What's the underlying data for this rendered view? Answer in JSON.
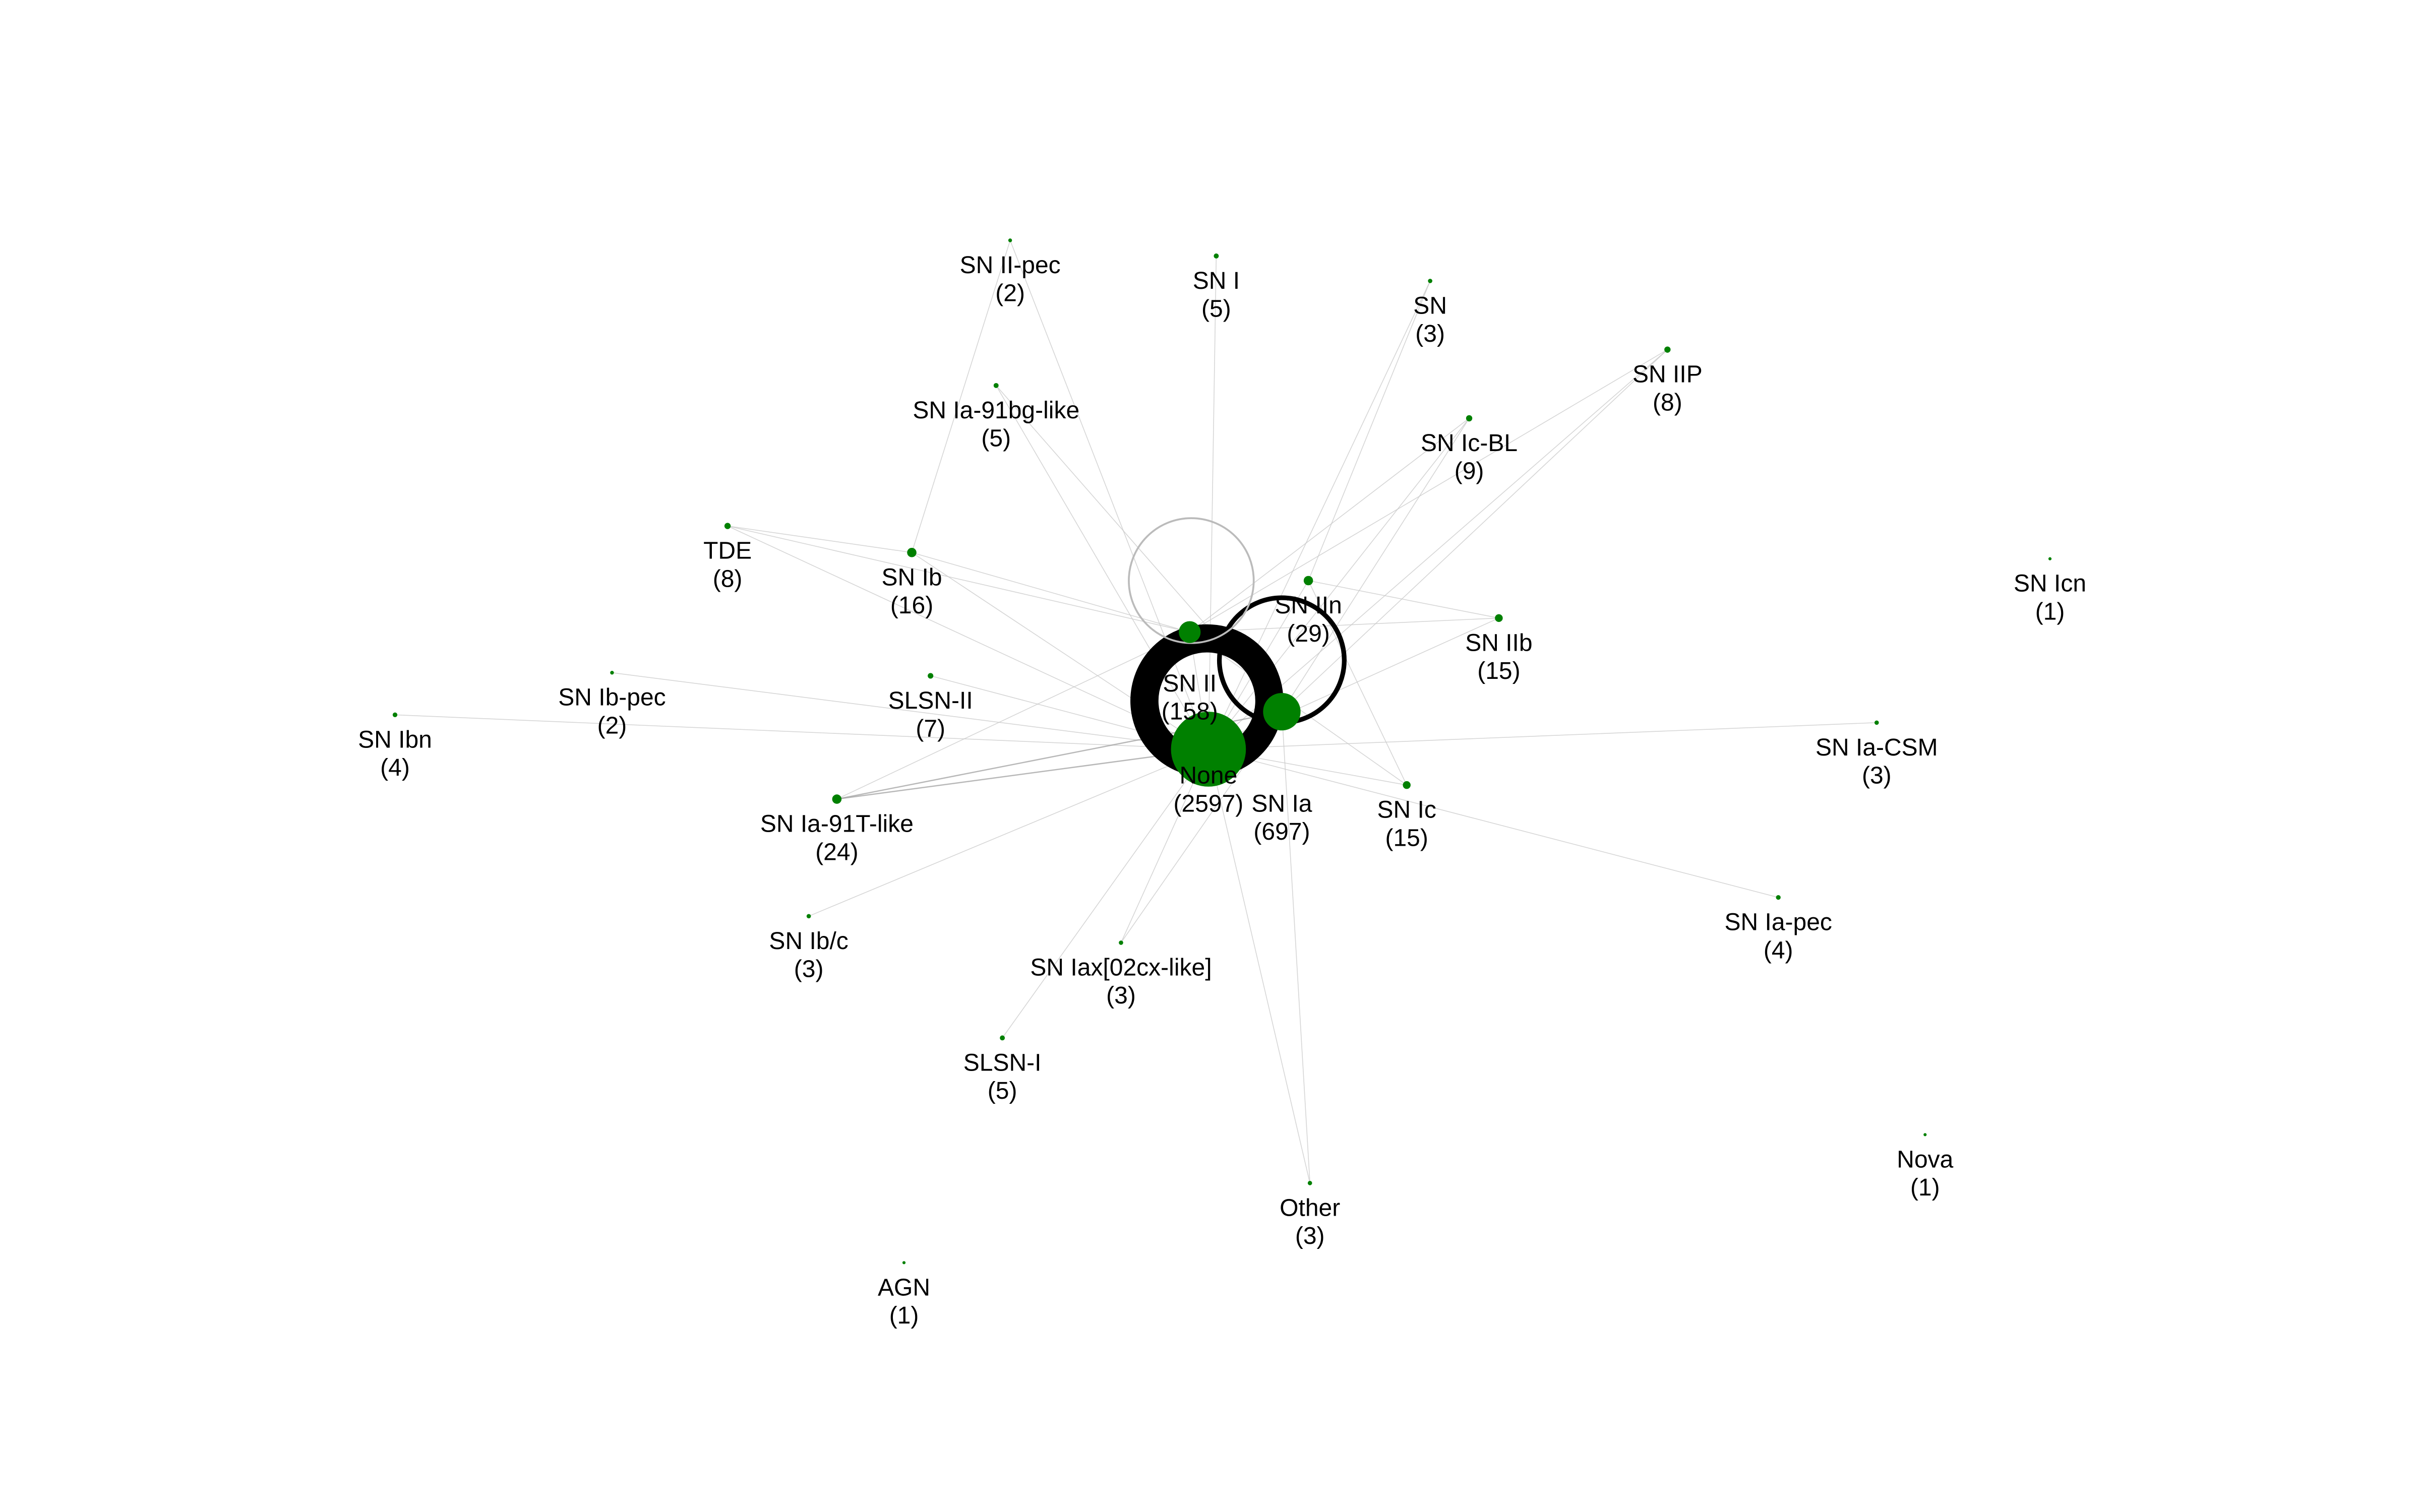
{
  "colors": {
    "node": "#008000",
    "edge": "#c8c8c8",
    "loop": "#000000",
    "background": "#ffffff"
  },
  "nodes": [
    {
      "id": "none",
      "label": "None",
      "count": "(2597)",
      "weight": 2597
    },
    {
      "id": "sn-ia",
      "label": "SN Ia",
      "count": "(697)",
      "weight": 697
    },
    {
      "id": "sn-ii",
      "label": "SN II",
      "count": "(158)",
      "weight": 158
    },
    {
      "id": "sn-iin",
      "label": "SN IIn",
      "count": "(29)",
      "weight": 29
    },
    {
      "id": "sn-ia-91t-like",
      "label": "SN Ia-91T-like",
      "count": "(24)",
      "weight": 24
    },
    {
      "id": "sn-ib",
      "label": "SN Ib",
      "count": "(16)",
      "weight": 16
    },
    {
      "id": "sn-iib",
      "label": "SN IIb",
      "count": "(15)",
      "weight": 15
    },
    {
      "id": "sn-ic",
      "label": "SN Ic",
      "count": "(15)",
      "weight": 15
    },
    {
      "id": "sn-ic-bl",
      "label": "SN Ic-BL",
      "count": "(9)",
      "weight": 9
    },
    {
      "id": "sn-iip",
      "label": "SN IIP",
      "count": "(8)",
      "weight": 8
    },
    {
      "id": "tde",
      "label": "TDE",
      "count": "(8)",
      "weight": 8
    },
    {
      "id": "slsn-ii",
      "label": "SLSN-II",
      "count": "(7)",
      "weight": 7
    },
    {
      "id": "sn-ia-91bg-like",
      "label": "SN Ia-91bg-like",
      "count": "(5)",
      "weight": 5
    },
    {
      "id": "sn-i",
      "label": "SN I",
      "count": "(5)",
      "weight": 5
    },
    {
      "id": "slsn-i",
      "label": "SLSN-I",
      "count": "(5)",
      "weight": 5
    },
    {
      "id": "sn-ibn",
      "label": "SN Ibn",
      "count": "(4)",
      "weight": 4
    },
    {
      "id": "sn-ia-pec",
      "label": "SN Ia-pec",
      "count": "(4)",
      "weight": 4
    },
    {
      "id": "sn",
      "label": "SN",
      "count": "(3)",
      "weight": 3
    },
    {
      "id": "sn-ia-csm",
      "label": "SN Ia-CSM",
      "count": "(3)",
      "weight": 3
    },
    {
      "id": "sn-ib-c",
      "label": "SN Ib/c",
      "count": "(3)",
      "weight": 3
    },
    {
      "id": "sn-iax",
      "label": "SN Iax[02cx-like]",
      "count": "(3)",
      "weight": 3
    },
    {
      "id": "other",
      "label": "Other",
      "count": "(3)",
      "weight": 3
    },
    {
      "id": "sn-ii-pec",
      "label": "SN II-pec",
      "count": "(2)",
      "weight": 2
    },
    {
      "id": "sn-ib-pec",
      "label": "SN Ib-pec",
      "count": "(2)",
      "weight": 2
    },
    {
      "id": "sn-icn",
      "label": "SN Icn",
      "count": "(1)",
      "weight": 1
    },
    {
      "id": "nova",
      "label": "Nova",
      "count": "(1)",
      "weight": 1
    },
    {
      "id": "agn",
      "label": "AGN",
      "count": "(1)",
      "weight": 1
    }
  ],
  "edges": [
    [
      "none",
      "sn-ia"
    ],
    [
      "none",
      "sn-ii"
    ],
    [
      "none",
      "sn-iin"
    ],
    [
      "none",
      "sn-ia-91t-like"
    ],
    [
      "none",
      "sn-ib"
    ],
    [
      "none",
      "sn-iib"
    ],
    [
      "none",
      "sn-ic"
    ],
    [
      "none",
      "sn-ic-bl"
    ],
    [
      "none",
      "sn-iip"
    ],
    [
      "none",
      "tde"
    ],
    [
      "none",
      "slsn-ii"
    ],
    [
      "none",
      "sn-ia-91bg-like"
    ],
    [
      "none",
      "sn-i"
    ],
    [
      "none",
      "slsn-i"
    ],
    [
      "none",
      "sn-ibn"
    ],
    [
      "none",
      "sn-ia-pec"
    ],
    [
      "none",
      "sn"
    ],
    [
      "none",
      "sn-ia-csm"
    ],
    [
      "none",
      "sn-ib-c"
    ],
    [
      "none",
      "sn-iax"
    ],
    [
      "none",
      "other"
    ],
    [
      "none",
      "sn-ii-pec"
    ],
    [
      "none",
      "sn-ib-pec"
    ],
    [
      "sn-ia",
      "sn-ia-91t-like"
    ],
    [
      "sn-ia",
      "sn-ia-91bg-like"
    ],
    [
      "sn-ia",
      "sn-iip"
    ],
    [
      "sn-ia",
      "sn-ic-bl"
    ],
    [
      "sn-ia",
      "sn-iax"
    ],
    [
      "sn-ia",
      "other"
    ],
    [
      "sn-ii",
      "sn-iip"
    ],
    [
      "sn-ii",
      "sn-ic-bl"
    ],
    [
      "sn-ii",
      "tde"
    ],
    [
      "sn-ii",
      "sn-ib"
    ],
    [
      "sn-ii",
      "sn-ia-91t-like"
    ],
    [
      "sn-ii",
      "sn-iib"
    ],
    [
      "sn-ii",
      "sn-ic"
    ],
    [
      "sn-iin",
      "sn-iib"
    ],
    [
      "sn-iin",
      "sn-ic"
    ],
    [
      "sn-iin",
      "sn"
    ],
    [
      "sn-ib",
      "tde"
    ],
    [
      "sn-ib",
      "sn-ii-pec"
    ]
  ],
  "self_loops": [
    "none",
    "sn-ia",
    "sn-ii"
  ]
}
